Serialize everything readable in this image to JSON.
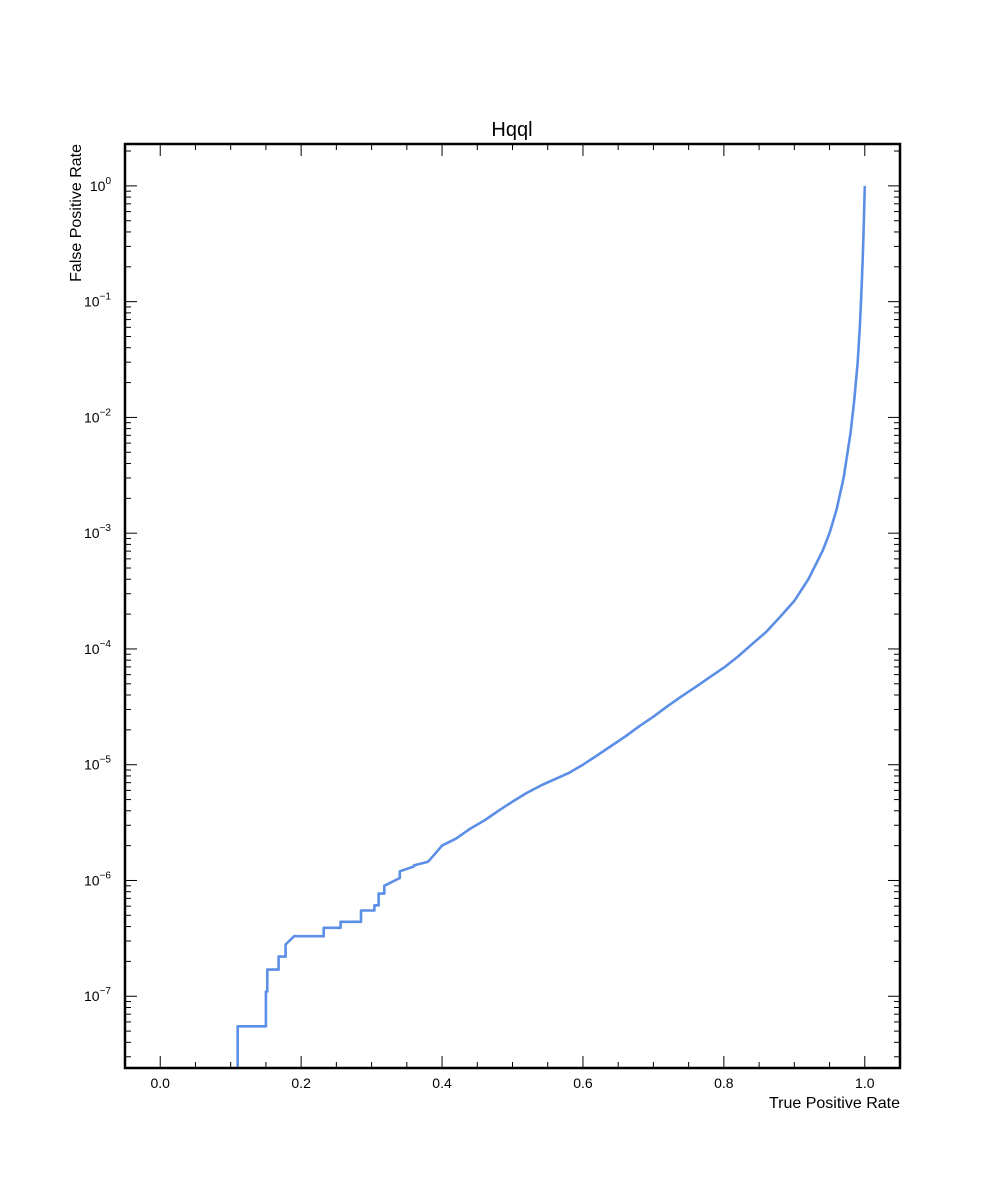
{
  "chart_data": {
    "type": "line",
    "title": "Hqql",
    "xlabel": "True Positive Rate",
    "ylabel": "False Positive Rate",
    "xlim": [
      -0.05,
      1.05
    ],
    "ylim": [
      2.4e-08,
      2.3
    ],
    "yscale": "log",
    "grid": false,
    "legend": "none",
    "xticks": [
      {
        "value": 0.0,
        "label": "0.0"
      },
      {
        "value": 0.2,
        "label": "0.2"
      },
      {
        "value": 0.4,
        "label": "0.4"
      },
      {
        "value": 0.6,
        "label": "0.6"
      },
      {
        "value": 0.8,
        "label": "0.8"
      },
      {
        "value": 1.0,
        "label": "1.0"
      }
    ],
    "yticks": [
      {
        "value": 1e-07,
        "base": "10",
        "exp": "−7"
      },
      {
        "value": 1e-06,
        "base": "10",
        "exp": "−6"
      },
      {
        "value": 1e-05,
        "base": "10",
        "exp": "−5"
      },
      {
        "value": 0.0001,
        "base": "10",
        "exp": "−4"
      },
      {
        "value": 0.001,
        "base": "10",
        "exp": "−3"
      },
      {
        "value": 0.01,
        "base": "10",
        "exp": "−2"
      },
      {
        "value": 0.1,
        "base": "10",
        "exp": "−1"
      },
      {
        "value": 1,
        "base": "10",
        "exp": "0"
      }
    ],
    "series": [
      {
        "color": "#5b8ee6",
        "x": [
          0.11,
          0.11,
          0.15,
          0.15,
          0.152,
          0.152,
          0.168,
          0.168,
          0.178,
          0.178,
          0.19,
          0.19,
          0.232,
          0.232,
          0.256,
          0.256,
          0.285,
          0.285,
          0.304,
          0.304,
          0.31,
          0.31,
          0.318,
          0.318,
          0.34,
          0.34,
          0.36,
          0.36,
          0.38,
          0.39,
          0.4,
          0.42,
          0.44,
          0.46,
          0.48,
          0.5,
          0.52,
          0.54,
          0.56,
          0.58,
          0.6,
          0.62,
          0.64,
          0.66,
          0.68,
          0.7,
          0.72,
          0.74,
          0.76,
          0.78,
          0.8,
          0.82,
          0.84,
          0.86,
          0.88,
          0.9,
          0.92,
          0.94,
          0.95,
          0.96,
          0.97,
          0.98,
          0.985,
          0.99,
          0.993,
          0.995,
          0.997,
          0.998,
          0.999,
          1.0
        ],
        "y": [
          2.4e-08,
          5.5e-08,
          5.5e-08,
          1.1e-07,
          1.1e-07,
          1.7e-07,
          1.7e-07,
          2.2e-07,
          2.2e-07,
          2.8e-07,
          3.3e-07,
          3.3e-07,
          3.3e-07,
          3.9e-07,
          3.9e-07,
          4.4e-07,
          4.4e-07,
          5.5e-07,
          5.5e-07,
          6.1e-07,
          6.1e-07,
          7.7e-07,
          7.7e-07,
          9e-07,
          1.05e-06,
          1.2e-06,
          1.32e-06,
          1.35e-06,
          1.45e-06,
          1.7e-06,
          2e-06,
          2.3e-06,
          2.8e-06,
          3.3e-06,
          4e-06,
          4.8e-06,
          5.7e-06,
          6.6e-06,
          7.5e-06,
          8.5e-06,
          1e-05,
          1.2e-05,
          1.45e-05,
          1.75e-05,
          2.15e-05,
          2.6e-05,
          3.2e-05,
          3.9e-05,
          4.7e-05,
          5.7e-05,
          6.9e-05,
          8.6e-05,
          0.00011,
          0.00014,
          0.00019,
          0.00026,
          0.0004,
          0.0007,
          0.001,
          0.0016,
          0.003,
          0.0075,
          0.014,
          0.03,
          0.06,
          0.11,
          0.23,
          0.36,
          0.6,
          1.0
        ]
      }
    ]
  }
}
